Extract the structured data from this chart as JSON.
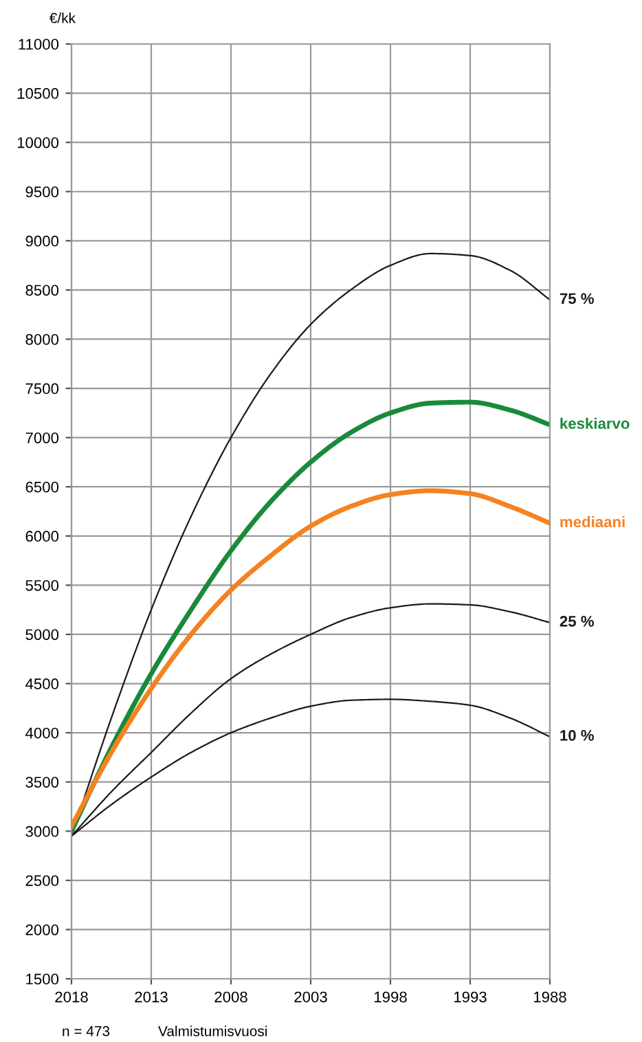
{
  "chart_data": {
    "type": "line",
    "ylabel": "€/kk",
    "xlabel": "Valmistumisvuosi",
    "annotations": [
      "n = 473"
    ],
    "xlim": [
      2018,
      1988
    ],
    "xticks": [
      2018,
      2013,
      2008,
      2003,
      1998,
      1993,
      1988
    ],
    "ylim": [
      1500,
      11000
    ],
    "yticks": [
      1500,
      2000,
      2500,
      3000,
      3500,
      4000,
      4500,
      5000,
      5500,
      6000,
      6500,
      7000,
      7500,
      8000,
      8500,
      9000,
      9500,
      10000,
      10500,
      11000
    ],
    "grid": true,
    "legend": false,
    "marker": "none",
    "line_style": "solid",
    "series": [
      {
        "name": "75 %",
        "color": "#1a1a1a",
        "x": [
          2018,
          2015.5,
          2013,
          2010.5,
          2008,
          2005.5,
          2003,
          2000.5,
          1998,
          1995.5,
          1993,
          1990.5,
          1988
        ],
        "values": [
          2950,
          4150,
          5250,
          6200,
          7000,
          7650,
          8150,
          8500,
          8750,
          8870,
          8850,
          8700,
          8400
        ]
      },
      {
        "name": "keskiarvo",
        "color": "#1a8a3a",
        "x": [
          2018,
          2015.5,
          2013,
          2010.5,
          2008,
          2005.5,
          2003,
          2000.5,
          1998,
          1995.5,
          1993,
          1990.5,
          1988
        ],
        "values": [
          3000,
          3850,
          4600,
          5250,
          5850,
          6350,
          6750,
          7050,
          7250,
          7350,
          7360,
          7280,
          7130
        ]
      },
      {
        "name": "mediaani",
        "color": "#f58220",
        "x": [
          2018,
          2015.5,
          2013,
          2010.5,
          2008,
          2005.5,
          2003,
          2000.5,
          1998,
          1995.5,
          1993,
          1990.5,
          1988
        ],
        "values": [
          3050,
          3800,
          4450,
          5000,
          5450,
          5800,
          6100,
          6300,
          6420,
          6460,
          6430,
          6300,
          6130
        ]
      },
      {
        "name": "25 %",
        "color": "#1a1a1a",
        "x": [
          2018,
          2015.5,
          2013,
          2010.5,
          2008,
          2005.5,
          2003,
          2000.5,
          1998,
          1995.5,
          1993,
          1990.5,
          1988
        ],
        "values": [
          2950,
          3400,
          3800,
          4200,
          4550,
          4800,
          5000,
          5170,
          5270,
          5310,
          5300,
          5230,
          5120
        ]
      },
      {
        "name": "10 %",
        "color": "#1a1a1a",
        "x": [
          2018,
          2015.5,
          2013,
          2010.5,
          2008,
          2005.5,
          2003,
          2000.5,
          1998,
          1995.5,
          1993,
          1990.5,
          1988
        ],
        "values": [
          2950,
          3270,
          3550,
          3800,
          4000,
          4150,
          4270,
          4330,
          4340,
          4320,
          4280,
          4150,
          3960
        ]
      }
    ]
  }
}
